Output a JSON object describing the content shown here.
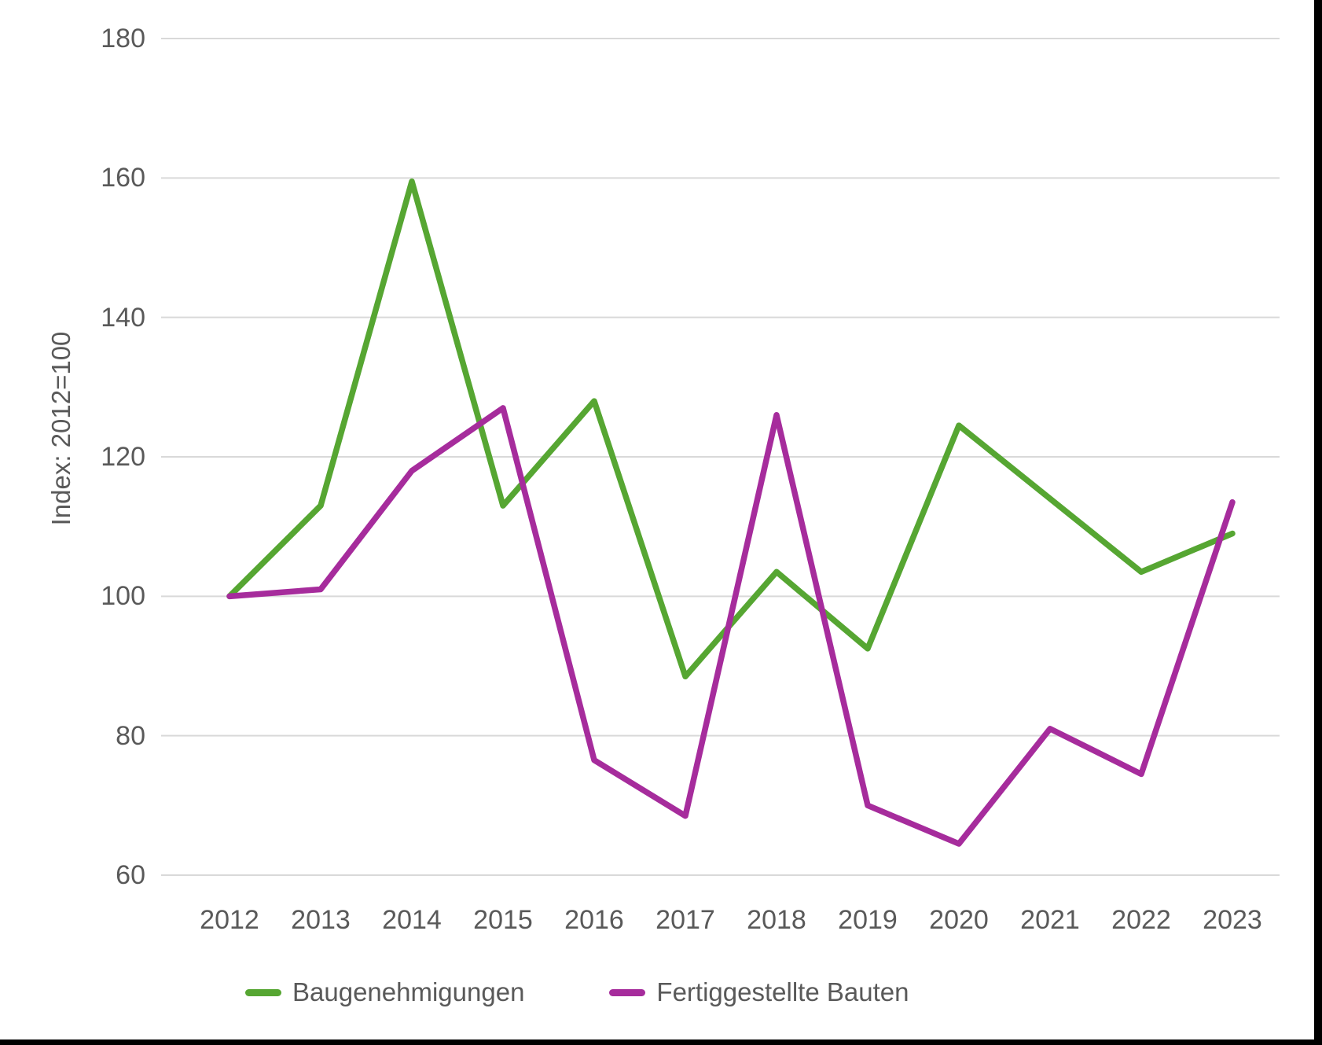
{
  "figure": {
    "background": "#ffffff",
    "edge_border_color": "#000000",
    "text_color": "#595959",
    "gridline_color": "#d9d9d9"
  },
  "chart_data": {
    "type": "line",
    "title": "",
    "xlabel": "",
    "ylabel": "Index: 2012=100",
    "categories": [
      "2012",
      "2013",
      "2014",
      "2015",
      "2016",
      "2017",
      "2018",
      "2019",
      "2020",
      "2021",
      "2022",
      "2023"
    ],
    "series": [
      {
        "name": "Baugenehmigungen",
        "color": "#56a632",
        "values": [
          100,
          113,
          159.5,
          113,
          128,
          88.5,
          103.5,
          92.5,
          124.5,
          114,
          103.5,
          109
        ]
      },
      {
        "name": "Fertiggestellte Bauten",
        "color": "#a62c9c",
        "values": [
          100,
          101,
          118,
          127,
          76.5,
          68.5,
          126,
          70,
          64.5,
          81,
          74.5,
          113.5
        ]
      }
    ],
    "ylim": [
      60,
      180
    ],
    "yticks": [
      60,
      80,
      100,
      120,
      140,
      160,
      180
    ],
    "grid": "horizontal-only",
    "legend_position": "bottom"
  }
}
